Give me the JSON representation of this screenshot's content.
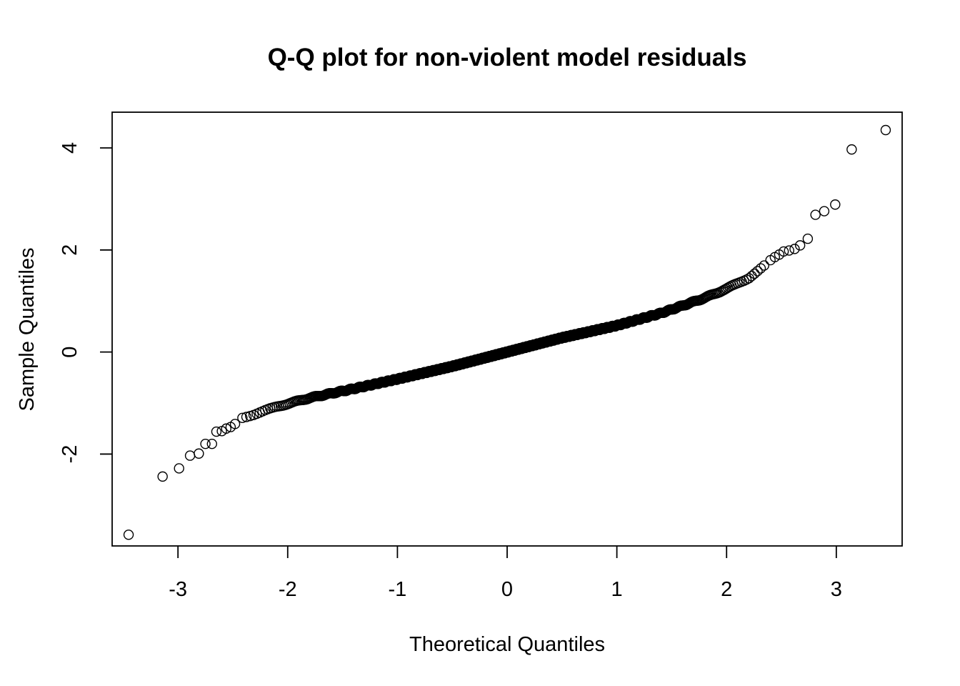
{
  "chart_data": {
    "type": "scatter",
    "title": "Q-Q plot for non-violent model residuals",
    "xlabel": "Theoretical Quantiles",
    "ylabel": "Sample Quantiles",
    "xlim": [
      -3.6,
      3.6
    ],
    "ylim": [
      -3.8,
      4.7
    ],
    "xticks": [
      -3,
      -2,
      -1,
      0,
      1,
      2,
      3
    ],
    "xtick_labels": [
      "-3",
      "-2",
      "-1",
      "0",
      "1",
      "2",
      "3"
    ],
    "yticks": [
      -2,
      0,
      2,
      4
    ],
    "ytick_labels": [
      "-2",
      "0",
      "2",
      "4"
    ],
    "grid": false,
    "legend": "none",
    "marker": "open-circle",
    "n_points": 1200,
    "curve_knots": {
      "x": [
        -2.45,
        -2.3,
        -2.1,
        -1.8,
        -1.4,
        -1.0,
        -0.5,
        0.0,
        0.5,
        1.0,
        1.4,
        1.8,
        2.0,
        2.2,
        2.35
      ],
      "y": [
        -1.3,
        -1.22,
        -1.07,
        -0.9,
        -0.72,
        -0.53,
        -0.28,
        0.0,
        0.28,
        0.52,
        0.76,
        1.06,
        1.24,
        1.45,
        1.7
      ]
    },
    "tail_points": [
      {
        "x": -3.45,
        "y": -3.58
      },
      {
        "x": -3.14,
        "y": -2.44
      },
      {
        "x": -2.99,
        "y": -2.28
      },
      {
        "x": -2.89,
        "y": -2.03
      },
      {
        "x": -2.81,
        "y": -1.99
      },
      {
        "x": -2.75,
        "y": -1.8
      },
      {
        "x": -2.69,
        "y": -1.8
      },
      {
        "x": -2.65,
        "y": -1.56
      },
      {
        "x": -2.6,
        "y": -1.55
      },
      {
        "x": -2.56,
        "y": -1.5
      },
      {
        "x": -2.52,
        "y": -1.47
      },
      {
        "x": -2.48,
        "y": -1.41
      },
      {
        "x": 2.4,
        "y": 1.8
      },
      {
        "x": 2.44,
        "y": 1.86
      },
      {
        "x": 2.48,
        "y": 1.91
      },
      {
        "x": 2.52,
        "y": 1.97
      },
      {
        "x": 2.57,
        "y": 1.99
      },
      {
        "x": 2.62,
        "y": 2.02
      },
      {
        "x": 2.67,
        "y": 2.09
      },
      {
        "x": 2.74,
        "y": 2.22
      },
      {
        "x": 2.81,
        "y": 2.69
      },
      {
        "x": 2.89,
        "y": 2.76
      },
      {
        "x": 2.99,
        "y": 2.89
      },
      {
        "x": 3.14,
        "y": 3.97
      },
      {
        "x": 3.45,
        "y": 4.35
      }
    ]
  }
}
